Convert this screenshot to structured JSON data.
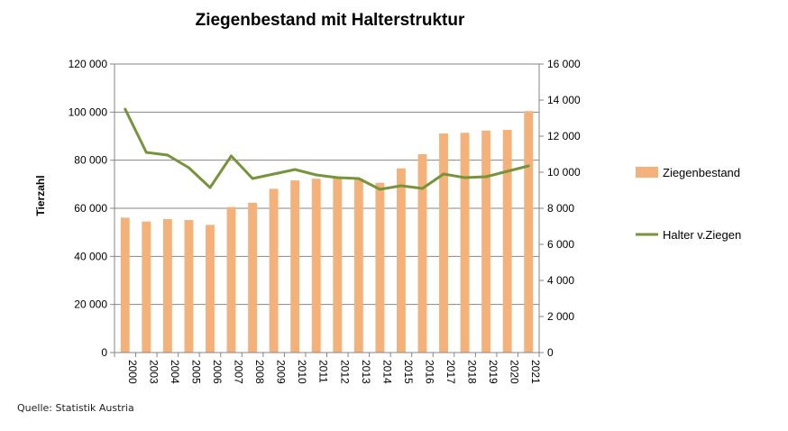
{
  "source": "Quelle: Statistik Austria",
  "chart_data": {
    "type": "bar",
    "title": "Ziegenbestand mit Halterstruktur",
    "xlabel": "",
    "ylabel": "Tierzahl",
    "ylabel_right": "",
    "categories": [
      "2000",
      "2003",
      "2004",
      "2005",
      "2006",
      "2007",
      "2008",
      "2009",
      "2010",
      "2011",
      "2012",
      "2013",
      "2014",
      "2015",
      "2016",
      "2017",
      "2018",
      "2019",
      "2020",
      "2021"
    ],
    "ylim": [
      0,
      120000
    ],
    "y_ticks": [
      "0",
      "20 000",
      "40 000",
      "60 000",
      "80 000",
      "100 000",
      "120 000"
    ],
    "ylim_right": [
      0,
      16000
    ],
    "y_ticks_right": [
      "0",
      "2 000",
      "4 000",
      "6 000",
      "8 000",
      "10 000",
      "12 000",
      "14 000",
      "16 000"
    ],
    "grid": true,
    "legend_position": "right",
    "series": [
      {
        "name": "Ziegenbestand",
        "type": "bar",
        "axis": "left",
        "color": "#f4b27a",
        "values": [
          56100,
          54500,
          55500,
          55100,
          53100,
          60500,
          62300,
          68100,
          71600,
          72300,
          72400,
          72400,
          70600,
          76600,
          82500,
          91100,
          91400,
          92300,
          92600,
          100400
        ]
      },
      {
        "name": "Halter v.Ziegen",
        "type": "line",
        "axis": "right",
        "color": "#77933c",
        "values": [
          13500,
          11100,
          10950,
          10250,
          9150,
          10900,
          9650,
          9900,
          10150,
          9850,
          9700,
          9650,
          9050,
          9250,
          9100,
          9900,
          9700,
          9750,
          10050,
          10350
        ]
      }
    ]
  }
}
